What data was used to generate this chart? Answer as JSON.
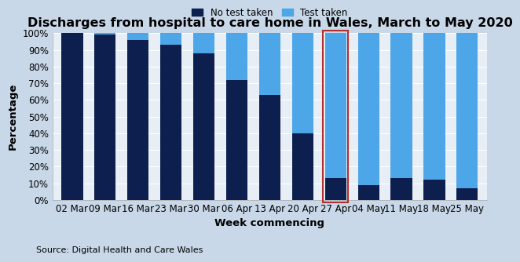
{
  "title": "Discharges from hospital to care home in Wales, March to May 2020",
  "xlabel": "Week commencing",
  "ylabel": "Percentage",
  "source": "Source: Digital Health and Care Wales",
  "categories": [
    "02 Mar",
    "09 Mar",
    "16 Mar",
    "23 Mar",
    "30 Mar",
    "06 Apr",
    "13 Apr",
    "20 Apr",
    "27 Apr",
    "04 May",
    "11 May",
    "18 May",
    "25 May"
  ],
  "no_test": [
    100,
    99,
    96,
    93,
    88,
    72,
    63,
    40,
    13,
    9,
    13,
    12,
    7
  ],
  "test_taken": [
    0,
    1,
    4,
    7,
    12,
    28,
    37,
    60,
    87,
    91,
    87,
    88,
    93
  ],
  "color_no_test": "#0d1f4e",
  "color_test": "#4da6e8",
  "highlight_index": 8,
  "highlight_color": "#b03030",
  "fig_bg_color": "#c8d8e8",
  "plot_bg_color": "#e8eef5",
  "yticks": [
    0,
    10,
    20,
    30,
    40,
    50,
    60,
    70,
    80,
    90,
    100
  ],
  "ytick_labels": [
    "0%",
    "10%",
    "20%",
    "30%",
    "40%",
    "50%",
    "60%",
    "70%",
    "80%",
    "90%",
    "100%"
  ],
  "title_fontsize": 11.5,
  "label_fontsize": 9.5,
  "tick_fontsize": 8.5,
  "legend_fontsize": 8.5,
  "source_fontsize": 8
}
